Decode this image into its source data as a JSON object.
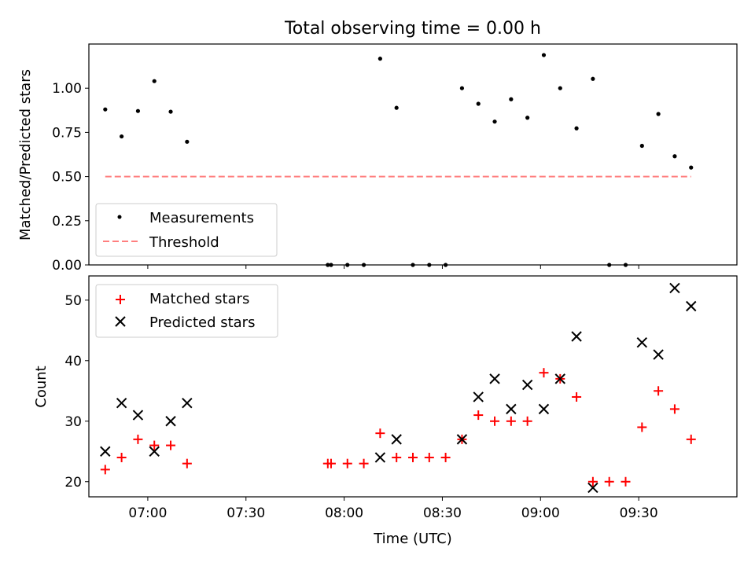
{
  "chart_data": [
    {
      "type": "scatter",
      "title": "Total observing time = 0.00 h",
      "xlabel": "",
      "ylabel": "Matched/Predicted stars",
      "xlim": [
        "06:42",
        "10:00"
      ],
      "ylim": [
        0,
        1.25
      ],
      "yticks": [
        "0.00",
        "0.25",
        "0.50",
        "0.75",
        "1.00"
      ],
      "ytick_values": [
        0,
        0.25,
        0.5,
        0.75,
        1.0
      ],
      "legend_placement": "lower-left",
      "series": [
        {
          "name": "Measurements",
          "marker": "dot",
          "color": "#000000",
          "points": [
            [
              "06:47",
              0.88
            ],
            [
              "06:52",
              0.727
            ],
            [
              "06:57",
              0.871
            ],
            [
              "07:02",
              1.04
            ],
            [
              "07:07",
              0.867
            ],
            [
              "07:12",
              0.697
            ],
            [
              "07:55",
              0.0
            ],
            [
              "07:56",
              0.0
            ],
            [
              "08:01",
              0.0
            ],
            [
              "08:06",
              0.0
            ],
            [
              "08:11",
              1.167
            ],
            [
              "08:16",
              0.889
            ],
            [
              "08:21",
              0.0
            ],
            [
              "08:26",
              0.0
            ],
            [
              "08:31",
              0.0
            ],
            [
              "08:36",
              1.0
            ],
            [
              "08:41",
              0.912
            ],
            [
              "08:46",
              0.811
            ],
            [
              "08:51",
              0.9375
            ],
            [
              "08:56",
              0.833
            ],
            [
              "09:01",
              1.1875
            ],
            [
              "09:06",
              1.0
            ],
            [
              "09:11",
              0.773
            ],
            [
              "09:16",
              1.053
            ],
            [
              "09:21",
              0.0
            ],
            [
              "09:26",
              0.0
            ],
            [
              "09:31",
              0.674
            ],
            [
              "09:36",
              0.854
            ],
            [
              "09:41",
              0.615
            ],
            [
              "09:46",
              0.551
            ]
          ]
        },
        {
          "name": "Threshold",
          "type": "line",
          "style": "dashed",
          "color": "#ff7f7f",
          "points": [
            [
              "06:47",
              0.5
            ],
            [
              "09:46",
              0.5
            ]
          ]
        }
      ]
    },
    {
      "type": "scatter",
      "title": "",
      "xlabel": "Time (UTC)",
      "ylabel": "Count",
      "xlim": [
        "06:42",
        "10:00"
      ],
      "ylim": [
        17.5,
        54
      ],
      "xticks": [
        "07:00",
        "07:30",
        "08:00",
        "08:30",
        "09:00",
        "09:30"
      ],
      "yticks": [
        "20",
        "30",
        "40",
        "50"
      ],
      "ytick_values": [
        20,
        30,
        40,
        50
      ],
      "legend_placement": "upper-left",
      "series": [
        {
          "name": "Matched stars",
          "marker": "plus",
          "color": "#ff0000",
          "points": [
            [
              "06:47",
              22
            ],
            [
              "06:52",
              24
            ],
            [
              "06:57",
              27
            ],
            [
              "07:02",
              26
            ],
            [
              "07:07",
              26
            ],
            [
              "07:12",
              23
            ],
            [
              "07:55",
              23
            ],
            [
              "07:56",
              23
            ],
            [
              "08:01",
              23
            ],
            [
              "08:06",
              23
            ],
            [
              "08:11",
              28
            ],
            [
              "08:16",
              24
            ],
            [
              "08:21",
              24
            ],
            [
              "08:26",
              24
            ],
            [
              "08:31",
              24
            ],
            [
              "08:36",
              27
            ],
            [
              "08:41",
              31
            ],
            [
              "08:46",
              30
            ],
            [
              "08:51",
              30
            ],
            [
              "08:56",
              30
            ],
            [
              "09:01",
              38
            ],
            [
              "09:06",
              37
            ],
            [
              "09:11",
              34
            ],
            [
              "09:16",
              20
            ],
            [
              "09:21",
              20
            ],
            [
              "09:26",
              20
            ],
            [
              "09:31",
              29
            ],
            [
              "09:36",
              35
            ],
            [
              "09:41",
              32
            ],
            [
              "09:46",
              27
            ]
          ]
        },
        {
          "name": "Predicted stars",
          "marker": "x",
          "color": "#000000",
          "points": [
            [
              "06:47",
              25
            ],
            [
              "06:52",
              33
            ],
            [
              "06:57",
              31
            ],
            [
              "07:02",
              25
            ],
            [
              "07:07",
              30
            ],
            [
              "07:12",
              33
            ],
            [
              "08:11",
              24
            ],
            [
              "08:16",
              27
            ],
            [
              "08:36",
              27
            ],
            [
              "08:41",
              34
            ],
            [
              "08:46",
              37
            ],
            [
              "08:51",
              32
            ],
            [
              "08:56",
              36
            ],
            [
              "09:01",
              32
            ],
            [
              "09:06",
              37
            ],
            [
              "09:11",
              44
            ],
            [
              "09:16",
              19
            ],
            [
              "09:31",
              43
            ],
            [
              "09:36",
              41
            ],
            [
              "09:41",
              52
            ],
            [
              "09:46",
              49
            ]
          ]
        }
      ]
    }
  ]
}
